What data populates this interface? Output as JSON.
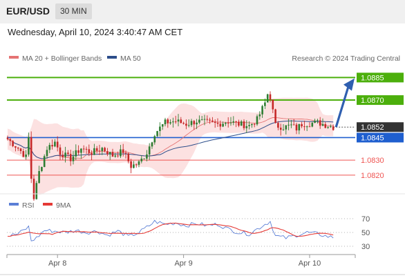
{
  "header": {
    "symbol": "EUR/USD",
    "timeframe": "30 MIN",
    "datetime": "Wednesday, April 10, 2024 3:40:47 AM CET"
  },
  "colors": {
    "bull": "#2e7d32",
    "bear": "#c62828",
    "ma20": "#e57373",
    "band": "#fbdcdc",
    "ma50": "#2c4d8a",
    "green_level": "#4caf0c",
    "blue_level": "#1f5fcf",
    "red_level": "#ef5350",
    "rsi": "#5b7fd6",
    "rsi_ma": "#e53935"
  },
  "chart_data": [
    {
      "type": "candlestick",
      "legend": [
        {
          "label": "MA 20 + Bollinger Bands",
          "color_key": "ma20"
        },
        {
          "label": "MA 50",
          "color_key": "ma50"
        }
      ],
      "credit": "Research © 2024 Trading Central",
      "ylim": [
        1.0808,
        1.0893
      ],
      "x_ticks": [
        {
          "label": "Apr 8",
          "index": 19
        },
        {
          "label": "Apr 9",
          "index": 67
        },
        {
          "label": "Apr 10",
          "index": 115
        }
      ],
      "levels": [
        {
          "value": 1.0885,
          "label": "1.0885",
          "kind": "resistance"
        },
        {
          "value": 1.087,
          "label": "1.0870",
          "kind": "resistance"
        },
        {
          "value": 1.0852,
          "label": "1.0852",
          "kind": "last"
        },
        {
          "value": 1.0845,
          "label": "1.0845",
          "kind": "pivot"
        },
        {
          "value": 1.083,
          "label": "1.0830",
          "kind": "support"
        },
        {
          "value": 1.082,
          "label": "1.0820",
          "kind": "support"
        }
      ],
      "anchors": [
        [
          0,
          1.0844
        ],
        [
          4,
          1.0838
        ],
        [
          7,
          1.0832
        ],
        [
          8,
          1.0845
        ],
        [
          9,
          1.0818
        ],
        [
          10,
          1.0805
        ],
        [
          12,
          1.0822
        ],
        [
          15,
          1.0838
        ],
        [
          18,
          1.0842
        ],
        [
          20,
          1.0835
        ],
        [
          24,
          1.0831
        ],
        [
          28,
          1.0838
        ],
        [
          32,
          1.0835
        ],
        [
          36,
          1.0838
        ],
        [
          40,
          1.0833
        ],
        [
          44,
          1.0836
        ],
        [
          47,
          1.0826
        ],
        [
          50,
          1.0828
        ],
        [
          53,
          1.0835
        ],
        [
          56,
          1.0848
        ],
        [
          60,
          1.0855
        ],
        [
          64,
          1.0856
        ],
        [
          68,
          1.0854
        ],
        [
          72,
          1.0856
        ],
        [
          76,
          1.0855
        ],
        [
          80,
          1.0854
        ],
        [
          84,
          1.0856
        ],
        [
          88,
          1.0854
        ],
        [
          92,
          1.0853
        ],
        [
          95,
          1.0857
        ],
        [
          98,
          1.0868
        ],
        [
          99,
          1.0874
        ],
        [
          100,
          1.0872
        ],
        [
          102,
          1.0853
        ],
        [
          105,
          1.0852
        ],
        [
          108,
          1.0853
        ],
        [
          110,
          1.0851
        ],
        [
          112,
          1.0854
        ],
        [
          118,
          1.0855
        ],
        [
          122,
          1.0853
        ],
        [
          124,
          1.0852
        ]
      ],
      "projection": {
        "from": 1.0852,
        "to": 1.0884
      }
    },
    {
      "type": "line",
      "legend": [
        {
          "label": "RSI",
          "color_key": "rsi"
        },
        {
          "label": "9MA",
          "color_key": "rsi_ma"
        }
      ],
      "ylim": [
        25,
        75
      ],
      "y_ticks": [
        {
          "value": 70,
          "label": "70"
        },
        {
          "value": 50,
          "label": "50"
        },
        {
          "value": 30,
          "label": "30"
        }
      ],
      "rsi_anchors": [
        [
          0,
          45
        ],
        [
          4,
          48
        ],
        [
          8,
          58
        ],
        [
          9,
          38
        ],
        [
          11,
          42
        ],
        [
          14,
          53
        ],
        [
          18,
          52
        ],
        [
          22,
          50
        ],
        [
          26,
          53
        ],
        [
          30,
          50
        ],
        [
          34,
          52
        ],
        [
          38,
          46
        ],
        [
          42,
          52
        ],
        [
          46,
          44
        ],
        [
          50,
          50
        ],
        [
          54,
          60
        ],
        [
          56,
          66
        ],
        [
          60,
          62
        ],
        [
          64,
          64
        ],
        [
          68,
          60
        ],
        [
          72,
          63
        ],
        [
          76,
          60
        ],
        [
          80,
          62
        ],
        [
          84,
          55
        ],
        [
          88,
          50
        ],
        [
          92,
          48
        ],
        [
          95,
          55
        ],
        [
          98,
          62
        ],
        [
          100,
          66
        ],
        [
          102,
          45
        ],
        [
          106,
          42
        ],
        [
          110,
          46
        ],
        [
          114,
          50
        ],
        [
          118,
          48
        ],
        [
          122,
          44
        ],
        [
          124,
          43
        ]
      ]
    }
  ]
}
